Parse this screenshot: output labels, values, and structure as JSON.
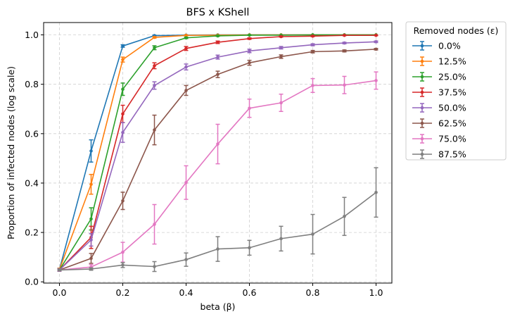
{
  "chart_data": {
    "type": "line",
    "title": "BFS x KShell",
    "xlabel": "beta (β)",
    "ylabel": "Proportion of infected nodes (log scale)",
    "xlim": [
      -0.05,
      1.05
    ],
    "ylim": [
      -0.005,
      1.05
    ],
    "xticks": [
      0.0,
      0.2,
      0.4,
      0.6,
      0.8,
      1.0
    ],
    "yticks": [
      0.0,
      0.2,
      0.4,
      0.6,
      0.8,
      1.0
    ],
    "xtick_labels": [
      "0.0",
      "0.2",
      "0.4",
      "0.6",
      "0.8",
      "1.0"
    ],
    "ytick_labels": [
      "0.0",
      "0.2",
      "0.4",
      "0.6",
      "0.8",
      "1.0"
    ],
    "grid": true,
    "legend": {
      "title": "Removed nodes (ε)",
      "placement": "outside-right-top"
    },
    "x": [
      0.0,
      0.1,
      0.2,
      0.3,
      0.4,
      0.5,
      0.6,
      0.7,
      0.8,
      0.9,
      1.0
    ],
    "series": [
      {
        "name": "0.0%",
        "color": "#1f77b4",
        "values": [
          0.05,
          0.53,
          0.955,
          0.997,
          0.999,
          1.0,
          1.0,
          1.0,
          1.0,
          1.0,
          1.0
        ],
        "errors": [
          0.005,
          0.045,
          0.005,
          0.002,
          0.001,
          0.0,
          0.0,
          0.0,
          0.0,
          0.0,
          0.0
        ]
      },
      {
        "name": "12.5%",
        "color": "#ff7f0e",
        "values": [
          0.05,
          0.395,
          0.9,
          0.99,
          0.998,
          0.999,
          1.0,
          1.0,
          1.0,
          1.0,
          1.0
        ],
        "errors": [
          0.005,
          0.04,
          0.01,
          0.003,
          0.001,
          0.0,
          0.0,
          0.0,
          0.0,
          0.0,
          0.0
        ]
      },
      {
        "name": "25.0%",
        "color": "#2ca02c",
        "values": [
          0.048,
          0.255,
          0.78,
          0.948,
          0.988,
          0.996,
          0.999,
          0.999,
          1.0,
          1.0,
          1.0
        ],
        "errors": [
          0.005,
          0.045,
          0.025,
          0.008,
          0.003,
          0.002,
          0.001,
          0.0,
          0.0,
          0.0,
          0.0
        ]
      },
      {
        "name": "37.5%",
        "color": "#d62728",
        "values": [
          0.048,
          0.18,
          0.68,
          0.875,
          0.945,
          0.97,
          0.985,
          0.993,
          0.995,
          0.998,
          0.998
        ],
        "errors": [
          0.005,
          0.045,
          0.035,
          0.012,
          0.008,
          0.005,
          0.003,
          0.002,
          0.002,
          0.001,
          0.001
        ]
      },
      {
        "name": "50.0%",
        "color": "#9467bd",
        "values": [
          0.048,
          0.17,
          0.605,
          0.795,
          0.87,
          0.91,
          0.935,
          0.948,
          0.96,
          0.967,
          0.972
        ],
        "errors": [
          0.005,
          0.025,
          0.04,
          0.015,
          0.012,
          0.008,
          0.007,
          0.005,
          0.004,
          0.003,
          0.003
        ]
      },
      {
        "name": "62.5%",
        "color": "#8c564b",
        "values": [
          0.048,
          0.095,
          0.328,
          0.615,
          0.775,
          0.84,
          0.887,
          0.912,
          0.932,
          0.935,
          0.942
        ],
        "errors": [
          0.003,
          0.02,
          0.035,
          0.06,
          0.02,
          0.013,
          0.01,
          0.007,
          0.005,
          0.004,
          0.003
        ]
      },
      {
        "name": "75.0%",
        "color": "#e377c2",
        "values": [
          0.048,
          0.06,
          0.12,
          0.233,
          0.402,
          0.558,
          0.703,
          0.725,
          0.795,
          0.797,
          0.815
        ],
        "errors": [
          0.003,
          0.01,
          0.04,
          0.08,
          0.068,
          0.08,
          0.037,
          0.035,
          0.028,
          0.035,
          0.035
        ]
      },
      {
        "name": "87.5%",
        "color": "#7f7f7f",
        "values": [
          0.048,
          0.052,
          0.068,
          0.062,
          0.09,
          0.133,
          0.138,
          0.175,
          0.193,
          0.265,
          0.362
        ],
        "errors": [
          0.003,
          0.005,
          0.01,
          0.02,
          0.027,
          0.05,
          0.03,
          0.05,
          0.08,
          0.077,
          0.1
        ]
      }
    ]
  }
}
